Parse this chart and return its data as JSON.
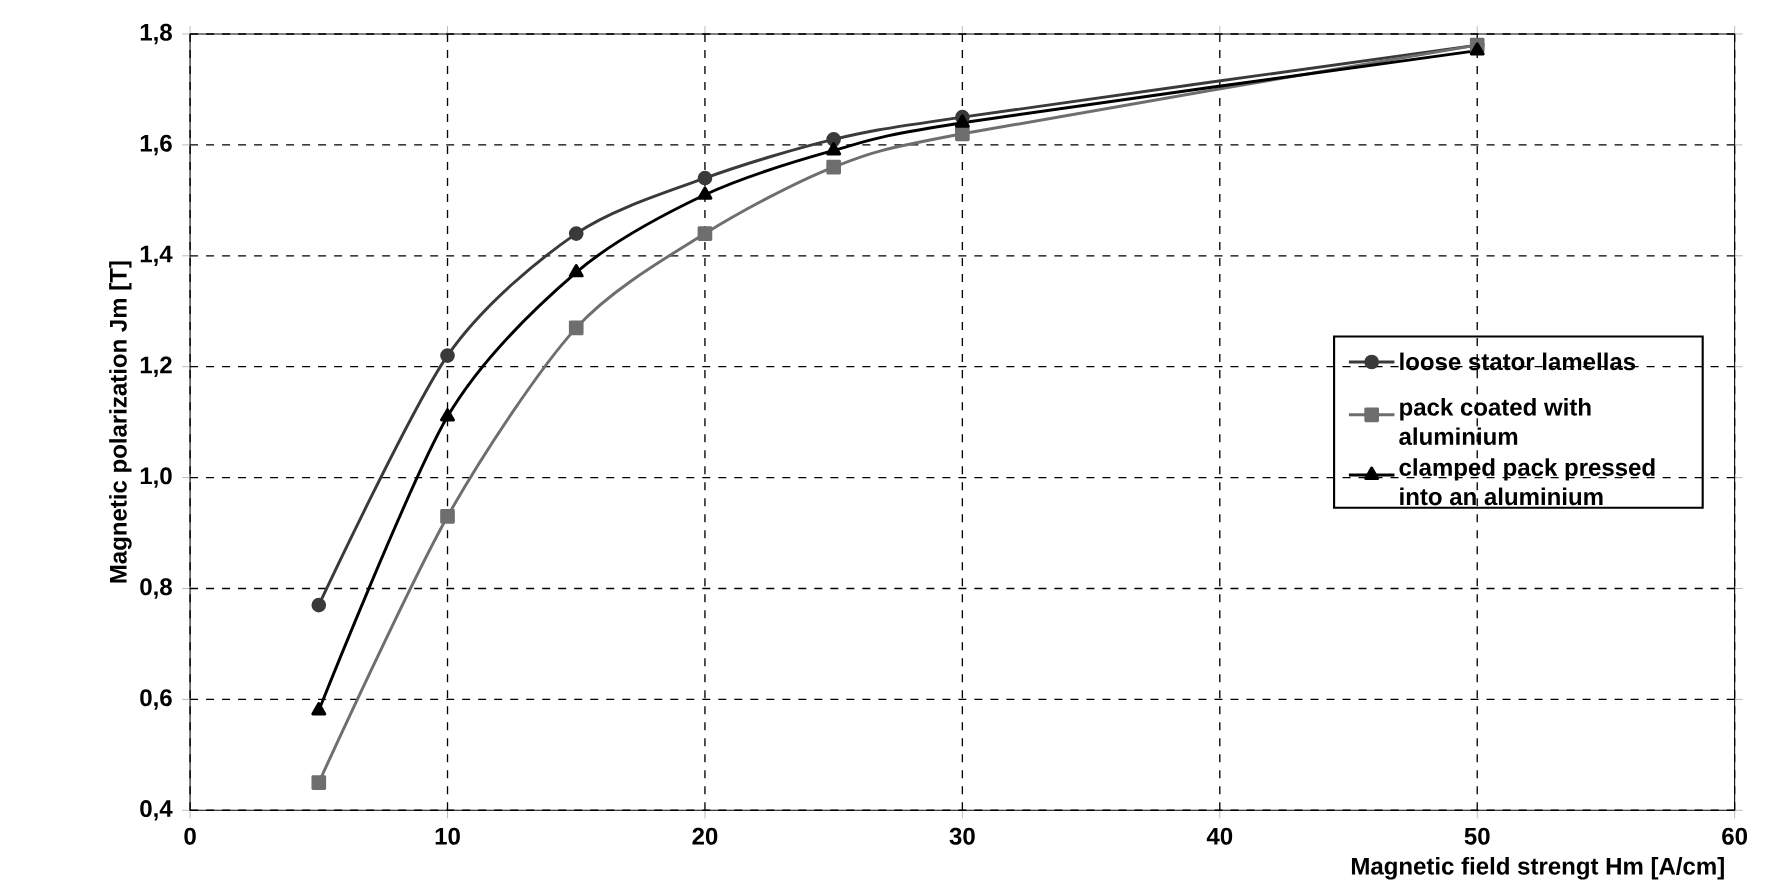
{
  "chart_data": {
    "type": "line",
    "xlabel": "Magnetic field strengt Hm  [A/cm]",
    "ylabel": "Magnetic polarization Jm  [T]",
    "x": [
      5,
      10,
      15,
      20,
      25,
      30,
      50
    ],
    "series": [
      {
        "name": "loose stator lamellas",
        "color": "#3a3a3a",
        "marker": "circle",
        "values": [
          0.77,
          1.22,
          1.44,
          1.54,
          1.61,
          1.65,
          1.78
        ]
      },
      {
        "name": "pack coated with aluminium",
        "color": "#6e6e6e",
        "marker": "square",
        "values": [
          0.45,
          0.93,
          1.27,
          1.44,
          1.56,
          1.62,
          1.78
        ]
      },
      {
        "name": "clamped pack pressed into an aluminium",
        "color": "#000000",
        "marker": "triangle",
        "values": [
          0.58,
          1.11,
          1.37,
          1.51,
          1.59,
          1.64,
          1.77
        ]
      }
    ],
    "xlim": [
      0,
      60
    ],
    "xticks": [
      0,
      10,
      20,
      30,
      40,
      50,
      60
    ],
    "ylim": [
      0.4,
      1.8
    ],
    "yticks": [
      {
        "value": 0.4,
        "label": "0,4"
      },
      {
        "value": 0.6,
        "label": "0,6"
      },
      {
        "value": 0.8,
        "label": "0,8"
      },
      {
        "value": 1.0,
        "label": "1,0"
      },
      {
        "value": 1.2,
        "label": "1,2"
      },
      {
        "value": 1.4,
        "label": "1,4"
      },
      {
        "value": 1.6,
        "label": "1,6"
      },
      {
        "value": 1.8,
        "label": "1,8"
      }
    ],
    "grid": true,
    "legend": "right",
    "line_style": "solid"
  }
}
